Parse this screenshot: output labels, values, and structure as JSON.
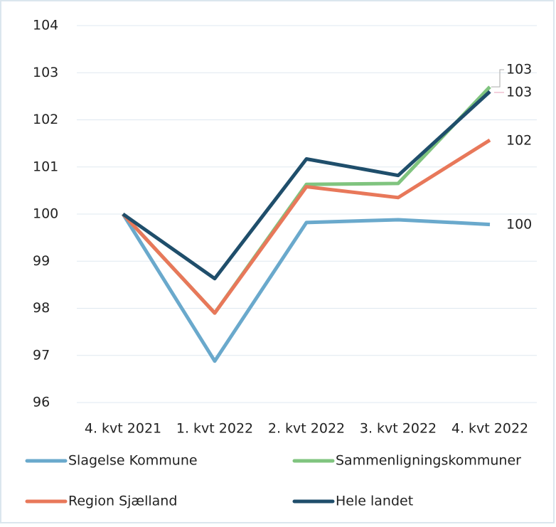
{
  "chart_data": {
    "type": "line",
    "categories": [
      "4. kvt 2021",
      "1. kvt 2022",
      "2. kvt 2022",
      "3. kvt 2022",
      "4. kvt 2022"
    ],
    "series": [
      {
        "name": "Slagelse Kommune",
        "color": "#6aa9cc",
        "values": [
          100,
          96.88,
          99.82,
          99.88,
          99.78
        ],
        "value_labels": [
          null,
          null,
          null,
          null,
          "100"
        ]
      },
      {
        "name": "Sammenligningskommuner",
        "color": "#80c47f",
        "values": [
          100,
          97.9,
          100.63,
          100.65,
          102.7
        ],
        "value_labels": [
          null,
          null,
          null,
          null,
          "103"
        ]
      },
      {
        "name": "Region Sjælland",
        "color": "#e8785a",
        "values": [
          100,
          97.9,
          100.58,
          100.35,
          101.57
        ],
        "value_labels": [
          null,
          null,
          null,
          null,
          "102"
        ]
      },
      {
        "name": "Hele landet",
        "color": "#1f4e6b",
        "values": [
          100,
          98.63,
          101.17,
          100.82,
          102.6
        ],
        "value_labels": [
          null,
          null,
          null,
          null,
          "103"
        ]
      }
    ],
    "ylim": [
      96,
      104
    ],
    "yticks": [
      96,
      97,
      98,
      99,
      100,
      101,
      102,
      103,
      104
    ],
    "grid": true
  }
}
